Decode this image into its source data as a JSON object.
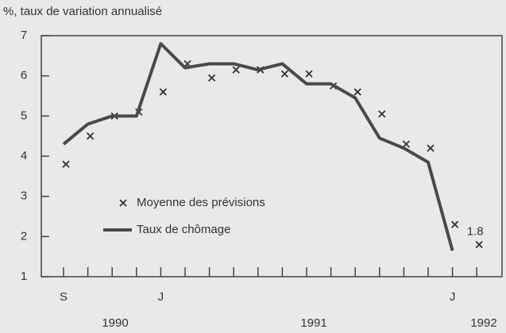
{
  "chart_data": {
    "type": "line",
    "y_label": "%, taux de variation annualisé",
    "categories": [
      "S",
      null,
      null,
      null,
      "J",
      null,
      null,
      null,
      null,
      null,
      null,
      null,
      null,
      null,
      null,
      null,
      "J",
      null
    ],
    "year_labels": [
      "1990",
      "1991",
      "1992"
    ],
    "series": [
      {
        "name": "Moyenne des prévisions",
        "color": "#333333",
        "marker": "x",
        "values": [
          3.8,
          4.5,
          5.0,
          5.1,
          5.6,
          6.3,
          5.95,
          6.15,
          6.15,
          6.05,
          6.05,
          5.75,
          5.6,
          5.05,
          4.3,
          4.2,
          2.3,
          1.8
        ],
        "value_labels": [
          null,
          null,
          null,
          null,
          null,
          null,
          null,
          null,
          null,
          null,
          null,
          null,
          null,
          null,
          null,
          null,
          null,
          "1.8"
        ]
      },
      {
        "name": "Taux de chômage",
        "color": "#4a4a4a",
        "values": [
          4.3,
          4.8,
          5.0,
          5.0,
          6.8,
          6.2,
          6.3,
          6.3,
          6.15,
          6.3,
          5.8,
          5.8,
          5.45,
          4.45,
          4.2,
          3.85,
          1.65,
          null
        ]
      }
    ],
    "ylim": [
      1,
      7
    ],
    "yticks": [
      1,
      2,
      3,
      4,
      5,
      6,
      7
    ]
  }
}
